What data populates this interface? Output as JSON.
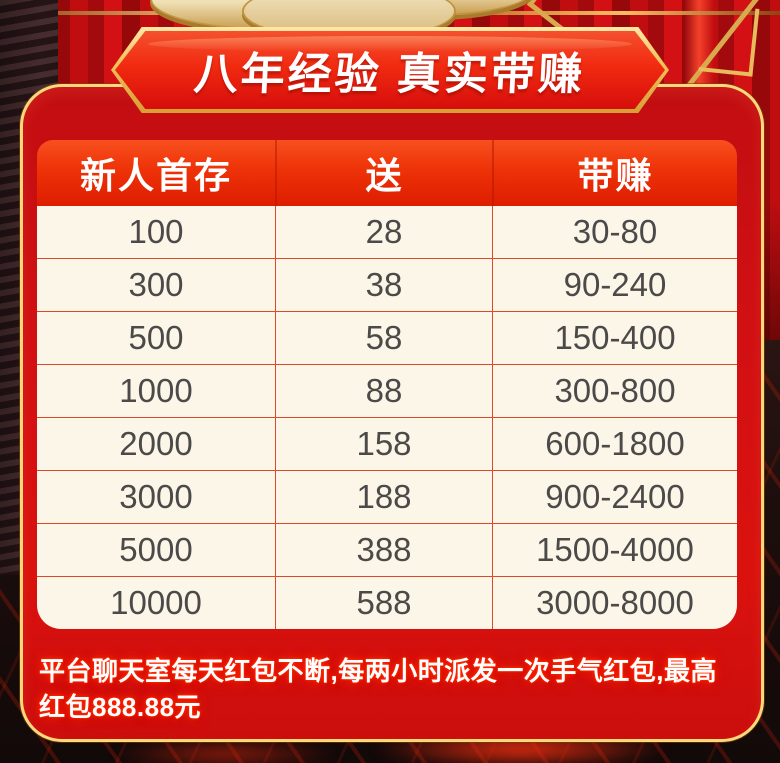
{
  "banner": {
    "title": "八年经验  真实带赚"
  },
  "table": {
    "headers": [
      "新人首存",
      "送",
      "带赚"
    ],
    "rows": [
      [
        "100",
        "28",
        "30-80"
      ],
      [
        "300",
        "38",
        "90-240"
      ],
      [
        "500",
        "58",
        "150-400"
      ],
      [
        "1000",
        "88",
        "300-800"
      ],
      [
        "2000",
        "158",
        "600-1800"
      ],
      [
        "3000",
        "188",
        "900-2400"
      ],
      [
        "5000",
        "388",
        "1500-4000"
      ],
      [
        "10000",
        "588",
        "3000-8000"
      ]
    ]
  },
  "note": {
    "text": "平台聊天室每天红包不断,每两小时派发一次手气红包,最高\n红包888.88元"
  },
  "colors": {
    "panel_red": "#d21013",
    "header_red_top": "#f8501f",
    "header_red_bottom": "#dd1d00",
    "gold_border": "#ffd87d",
    "row_cream": "#fcf6e9",
    "row_divider": "#dd4827",
    "cell_text": "#4c4a48",
    "note_glow": "#ff2400"
  }
}
